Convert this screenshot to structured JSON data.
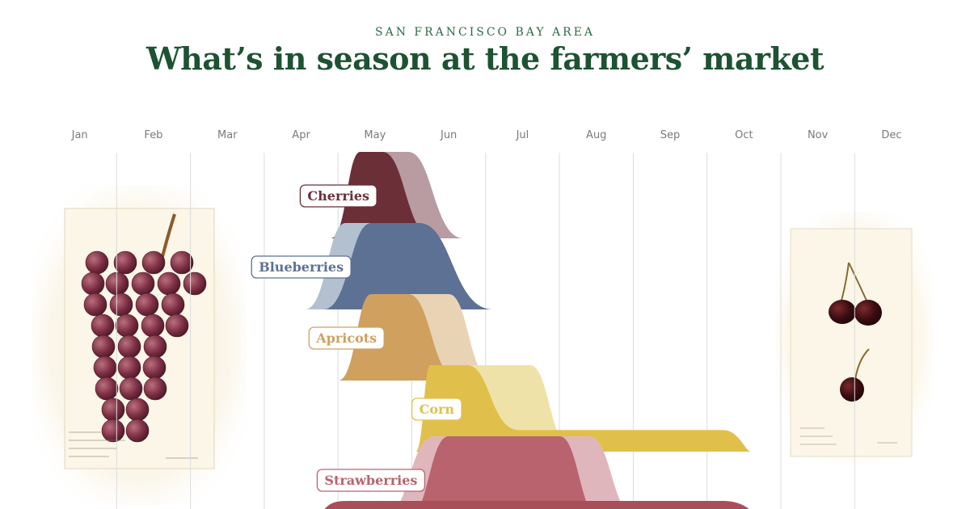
{
  "header": {
    "kicker": "SAN FRANCISCO BAY AREA",
    "title": "What’s in season at the farmers’ market"
  },
  "illustrations": [
    {
      "name": "grape-illustration",
      "subject": "grapes"
    },
    {
      "name": "cherry-illustration",
      "subject": "cherries"
    }
  ],
  "chart_data": {
    "type": "area",
    "subtype": "ridgeline",
    "x_unit": "month",
    "x_categories": [
      "Jan",
      "Feb",
      "Mar",
      "Apr",
      "May",
      "Jun",
      "Jul",
      "Aug",
      "Sep",
      "Oct",
      "Nov",
      "Dec"
    ],
    "xlim": [
      0,
      12
    ],
    "grid": "vertical month lines",
    "series": [
      {
        "name": "Cherries",
        "color": "#6b2f37",
        "light_color": "#b99ba2",
        "peak": {
          "start": 3.9,
          "rise_end": 4.3,
          "fall_start": 4.6,
          "end": 5.3
        },
        "extended": {
          "start": 4.0,
          "rise_end": 4.45,
          "fall_start": 4.95,
          "end": 5.7
        }
      },
      {
        "name": "Blueberries",
        "color": "#5c7194",
        "light_color": "#b3c0cf",
        "peak": {
          "start": 3.8,
          "rise_end": 4.45,
          "fall_start": 5.1,
          "end": 6.1
        },
        "extended": {
          "start": 3.55,
          "rise_end": 4.1,
          "fall_start": 4.9,
          "end": 5.95
        }
      },
      {
        "name": "Apricots",
        "color": "#cfa05e",
        "light_color": "#e9d3b5",
        "peak": {
          "start": 4.0,
          "rise_end": 4.45,
          "fall_start": 4.95,
          "end": 5.65
        },
        "extended": {
          "start": 4.2,
          "rise_end": 4.65,
          "fall_start": 5.5,
          "end": 6.1
        }
      },
      {
        "name": "Corn",
        "color": "#e0c04a",
        "light_color": "#efe2a9",
        "peak": {
          "start": 5.05,
          "rise_end": 5.25,
          "fall_start": 5.75,
          "end": 6.45,
          "tail": {
            "end": 9.6,
            "level": 0.25
          }
        },
        "extended": {
          "start": 5.05,
          "rise_end": 5.3,
          "fall_start": 6.6,
          "end": 7.2
        }
      },
      {
        "name": "Strawberries",
        "color": "#b8636d",
        "light_color": "#e0b6bd",
        "peak": {
          "start": 4.9,
          "rise_end": 5.5,
          "fall_start": 7.0,
          "end": 7.6
        },
        "extended": {
          "start": 4.55,
          "rise_end": 5.3,
          "fall_start": 7.4,
          "end": 8.1
        }
      }
    ]
  }
}
